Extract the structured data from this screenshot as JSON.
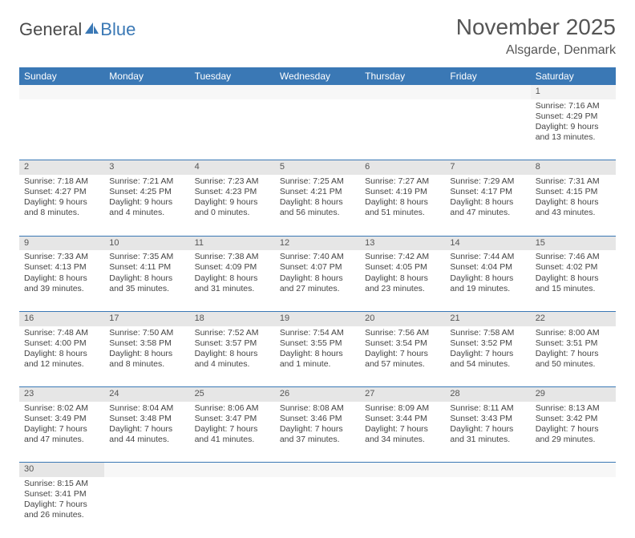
{
  "logo": {
    "part1": "General",
    "part2": "Blue"
  },
  "title": "November 2025",
  "location": "Alsgarde, Denmark",
  "colors": {
    "header_bg": "#3a78b5",
    "header_fg": "#ffffff",
    "daynum_bg": "#e6e6e6",
    "row_divider": "#3a78b5",
    "text": "#444444",
    "bg": "#ffffff"
  },
  "weekdays": [
    "Sunday",
    "Monday",
    "Tuesday",
    "Wednesday",
    "Thursday",
    "Friday",
    "Saturday"
  ],
  "weeks": [
    [
      null,
      null,
      null,
      null,
      null,
      null,
      {
        "n": "1",
        "sr": "7:16 AM",
        "ss": "4:29 PM",
        "dl": "9 hours and 13 minutes."
      }
    ],
    [
      {
        "n": "2",
        "sr": "7:18 AM",
        "ss": "4:27 PM",
        "dl": "9 hours and 8 minutes."
      },
      {
        "n": "3",
        "sr": "7:21 AM",
        "ss": "4:25 PM",
        "dl": "9 hours and 4 minutes."
      },
      {
        "n": "4",
        "sr": "7:23 AM",
        "ss": "4:23 PM",
        "dl": "9 hours and 0 minutes."
      },
      {
        "n": "5",
        "sr": "7:25 AM",
        "ss": "4:21 PM",
        "dl": "8 hours and 56 minutes."
      },
      {
        "n": "6",
        "sr": "7:27 AM",
        "ss": "4:19 PM",
        "dl": "8 hours and 51 minutes."
      },
      {
        "n": "7",
        "sr": "7:29 AM",
        "ss": "4:17 PM",
        "dl": "8 hours and 47 minutes."
      },
      {
        "n": "8",
        "sr": "7:31 AM",
        "ss": "4:15 PM",
        "dl": "8 hours and 43 minutes."
      }
    ],
    [
      {
        "n": "9",
        "sr": "7:33 AM",
        "ss": "4:13 PM",
        "dl": "8 hours and 39 minutes."
      },
      {
        "n": "10",
        "sr": "7:35 AM",
        "ss": "4:11 PM",
        "dl": "8 hours and 35 minutes."
      },
      {
        "n": "11",
        "sr": "7:38 AM",
        "ss": "4:09 PM",
        "dl": "8 hours and 31 minutes."
      },
      {
        "n": "12",
        "sr": "7:40 AM",
        "ss": "4:07 PM",
        "dl": "8 hours and 27 minutes."
      },
      {
        "n": "13",
        "sr": "7:42 AM",
        "ss": "4:05 PM",
        "dl": "8 hours and 23 minutes."
      },
      {
        "n": "14",
        "sr": "7:44 AM",
        "ss": "4:04 PM",
        "dl": "8 hours and 19 minutes."
      },
      {
        "n": "15",
        "sr": "7:46 AM",
        "ss": "4:02 PM",
        "dl": "8 hours and 15 minutes."
      }
    ],
    [
      {
        "n": "16",
        "sr": "7:48 AM",
        "ss": "4:00 PM",
        "dl": "8 hours and 12 minutes."
      },
      {
        "n": "17",
        "sr": "7:50 AM",
        "ss": "3:58 PM",
        "dl": "8 hours and 8 minutes."
      },
      {
        "n": "18",
        "sr": "7:52 AM",
        "ss": "3:57 PM",
        "dl": "8 hours and 4 minutes."
      },
      {
        "n": "19",
        "sr": "7:54 AM",
        "ss": "3:55 PM",
        "dl": "8 hours and 1 minute."
      },
      {
        "n": "20",
        "sr": "7:56 AM",
        "ss": "3:54 PM",
        "dl": "7 hours and 57 minutes."
      },
      {
        "n": "21",
        "sr": "7:58 AM",
        "ss": "3:52 PM",
        "dl": "7 hours and 54 minutes."
      },
      {
        "n": "22",
        "sr": "8:00 AM",
        "ss": "3:51 PM",
        "dl": "7 hours and 50 minutes."
      }
    ],
    [
      {
        "n": "23",
        "sr": "8:02 AM",
        "ss": "3:49 PM",
        "dl": "7 hours and 47 minutes."
      },
      {
        "n": "24",
        "sr": "8:04 AM",
        "ss": "3:48 PM",
        "dl": "7 hours and 44 minutes."
      },
      {
        "n": "25",
        "sr": "8:06 AM",
        "ss": "3:47 PM",
        "dl": "7 hours and 41 minutes."
      },
      {
        "n": "26",
        "sr": "8:08 AM",
        "ss": "3:46 PM",
        "dl": "7 hours and 37 minutes."
      },
      {
        "n": "27",
        "sr": "8:09 AM",
        "ss": "3:44 PM",
        "dl": "7 hours and 34 minutes."
      },
      {
        "n": "28",
        "sr": "8:11 AM",
        "ss": "3:43 PM",
        "dl": "7 hours and 31 minutes."
      },
      {
        "n": "29",
        "sr": "8:13 AM",
        "ss": "3:42 PM",
        "dl": "7 hours and 29 minutes."
      }
    ],
    [
      {
        "n": "30",
        "sr": "8:15 AM",
        "ss": "3:41 PM",
        "dl": "7 hours and 26 minutes."
      },
      null,
      null,
      null,
      null,
      null,
      null
    ]
  ]
}
